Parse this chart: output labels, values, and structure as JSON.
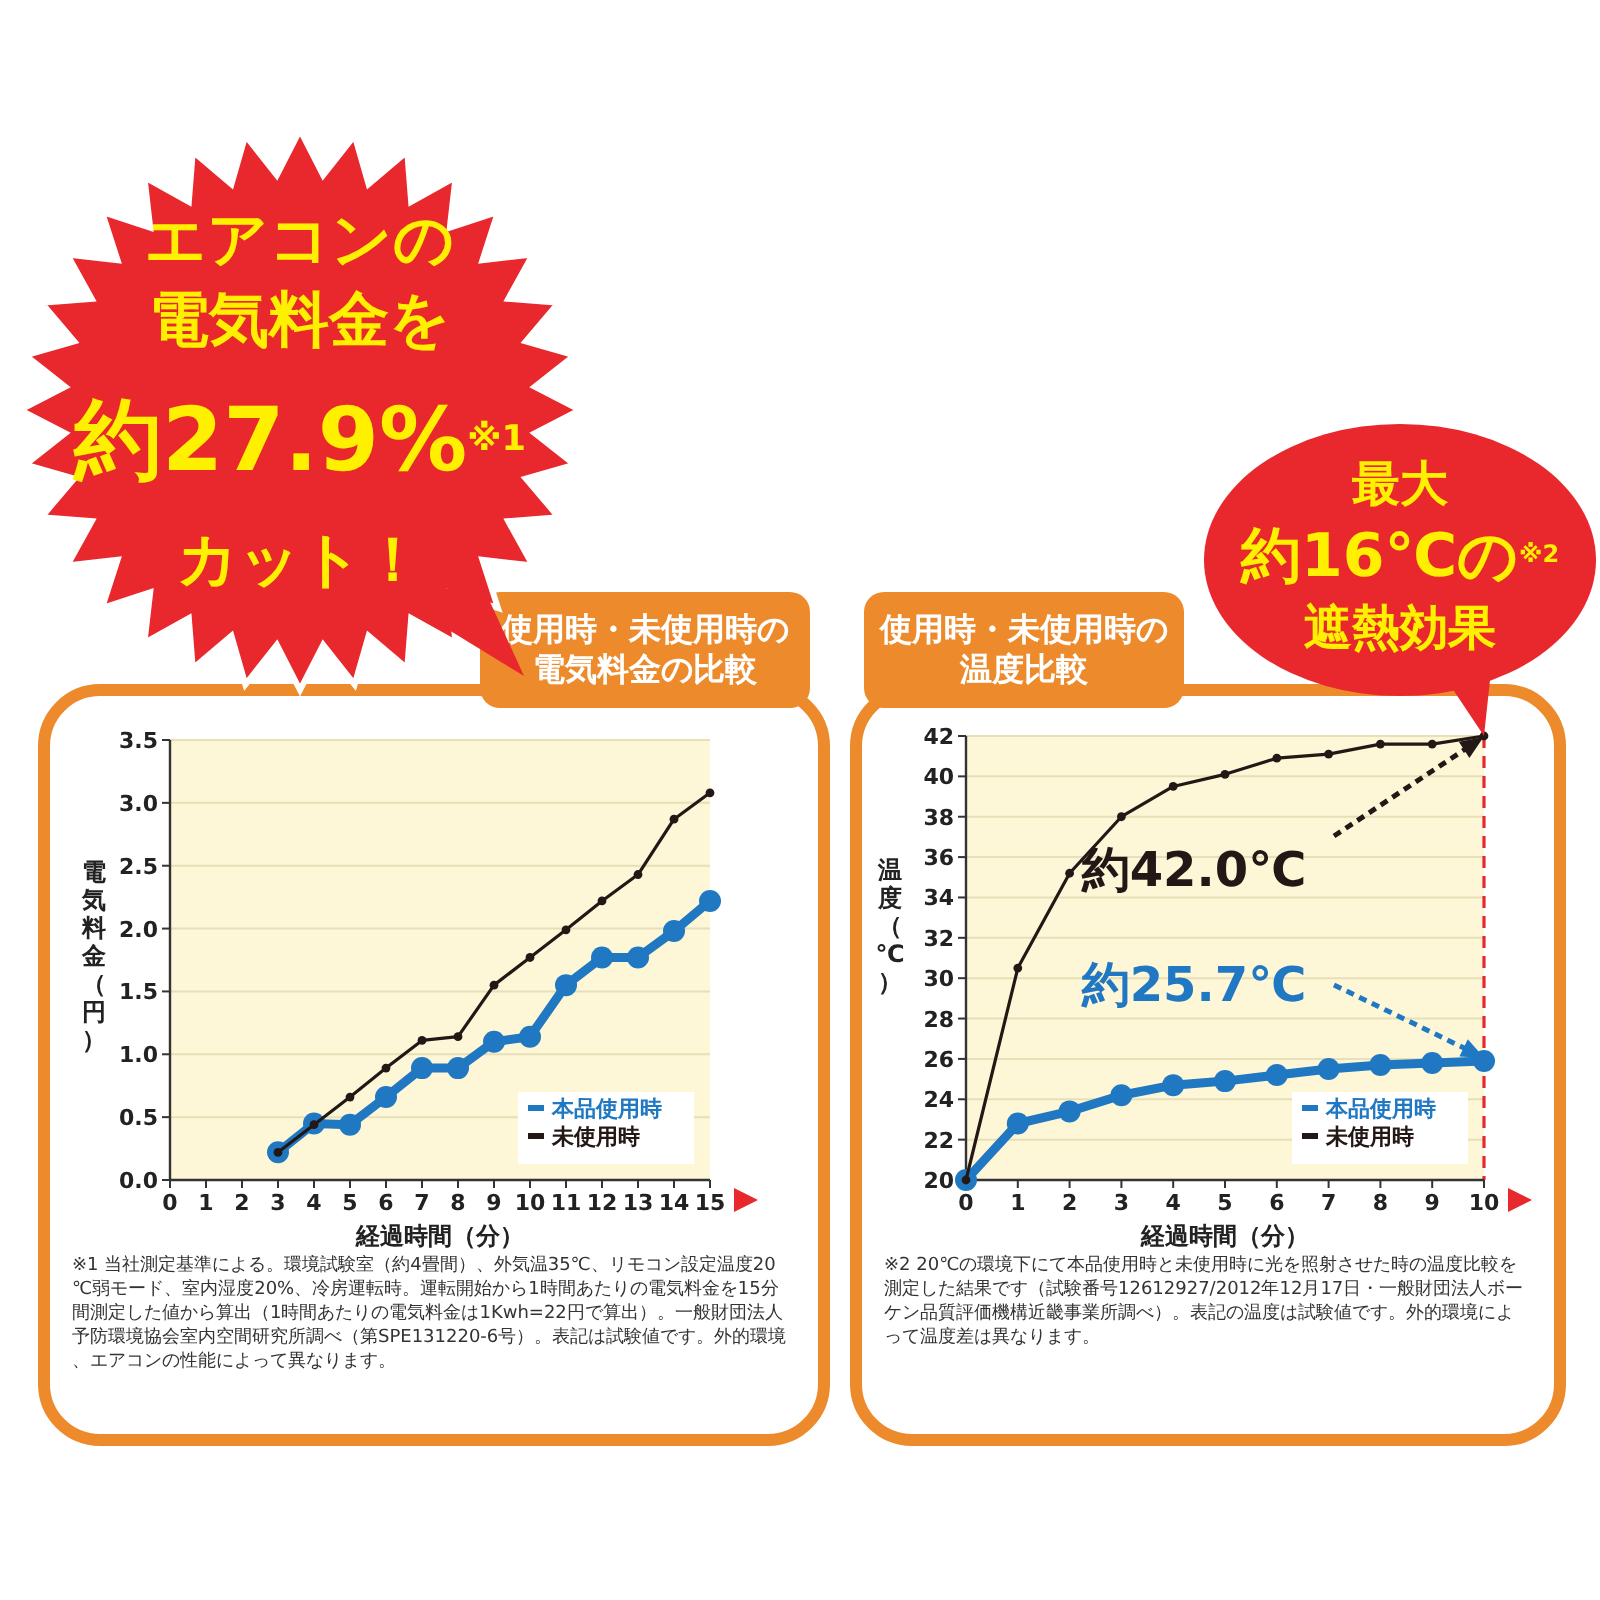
{
  "chart_data": [
    {
      "type": "line",
      "title": "使用時・未使用時の電気料金の比較",
      "xlabel": "経過時間（分）",
      "ylabel": "電気料金（円）",
      "x": [
        3,
        4,
        5,
        6,
        7,
        8,
        9,
        10,
        11,
        12,
        13,
        14,
        15
      ],
      "xlim": [
        0,
        15
      ],
      "xticks": [
        0,
        1,
        2,
        3,
        4,
        5,
        6,
        7,
        8,
        9,
        10,
        11,
        12,
        13,
        14,
        15
      ],
      "ylim": [
        0,
        3.5
      ],
      "yticks": [
        {
          "value": 0,
          "label": "0.0"
        },
        0.5,
        {
          "value": 1,
          "label": "1.0"
        },
        1.5,
        {
          "value": 2,
          "label": "2.0"
        },
        2.5,
        {
          "value": 3,
          "label": "3.0"
        },
        3.5
      ],
      "grid": "y",
      "legend": "bottom right",
      "marker": "circle",
      "series": [
        {
          "name": "本品使用時",
          "color": "#1f78c1",
          "values": [
            0.22,
            0.45,
            0.44,
            0.66,
            0.89,
            0.89,
            1.1,
            1.14,
            1.55,
            1.77,
            1.77,
            1.98,
            2.22
          ]
        },
        {
          "name": "未使用時",
          "color": "#231815",
          "values": [
            0.22,
            0.44,
            0.66,
            0.89,
            1.11,
            1.14,
            1.55,
            1.77,
            1.99,
            2.22,
            2.43,
            2.87,
            3.08
          ]
        }
      ],
      "annotations": [
        "エアコンの",
        "電気料金を",
        "約27.9%$^{※1}$",
        "カット！",
        "※1 当社測定基準による。環境試験室（約4畳間）、外気温35℃、リモコン設定温度20℃弱モード、室内湿度20%、冷房運転時。運転開始から1時間あたりの電気料金を15分間測定した値から算出（1時間あたりの電気料金は1Kwh=22円で算出）。一般財団法人予防環境協会室内空間研究所調べ（第SPE131220-6号）。表記は試験値です。外的環境、エアコンの性能によって異なります。"
      ]
    },
    {
      "type": "line",
      "title": "使用時・未使用時の温度比較",
      "xlabel": "経過時間（分）",
      "ylabel": "温度（℃）",
      "x": [
        0,
        1,
        2,
        3,
        4,
        5,
        6,
        7,
        8,
        9,
        10
      ],
      "xlim": [
        0,
        10
      ],
      "xticks": [
        0,
        1,
        2,
        3,
        4,
        5,
        6,
        7,
        8,
        9,
        10
      ],
      "ylim": [
        20,
        42
      ],
      "yticks": [
        20,
        22,
        24,
        26,
        28,
        30,
        32,
        34,
        36,
        38,
        40,
        42
      ],
      "grid": "y",
      "legend": "bottom right",
      "marker": "circle",
      "series": [
        {
          "name": "本品使用時",
          "color": "#1f78c1",
          "values": [
            20,
            22.8,
            23.4,
            24.2,
            24.7,
            24.9,
            25.2,
            25.5,
            25.7,
            25.8,
            25.9
          ]
        },
        {
          "name": "未使用時",
          "color": "#231815",
          "values": [
            20,
            30.5,
            35.2,
            38.0,
            39.5,
            40.1,
            40.9,
            41.1,
            41.6,
            41.6,
            42.0
          ]
        }
      ],
      "ref_lines": [
        {
          "axis": "x",
          "value": 10,
          "color": "#e8282c",
          "line_style": "dashed"
        }
      ],
      "annotations": [
        "最大",
        "約16℃の$^{※2}$",
        "遮熱効果",
        {
          "text": "約42.0℃",
          "x": 10,
          "y": 42.0
        },
        {
          "text": "約25.7℃",
          "x": 10,
          "y": 25.9
        },
        "※2 20℃の環境下にて本品使用時と未使用時に光を照射させた時の温度比較を測定した結果です（試験番号12612927/2012年12月17日・一般財団法人ボーケン品質評価機構近畿事業所調べ）。表記の温度は試験値です。外的環境によって温度差は異なります。"
      ]
    }
  ]
}
